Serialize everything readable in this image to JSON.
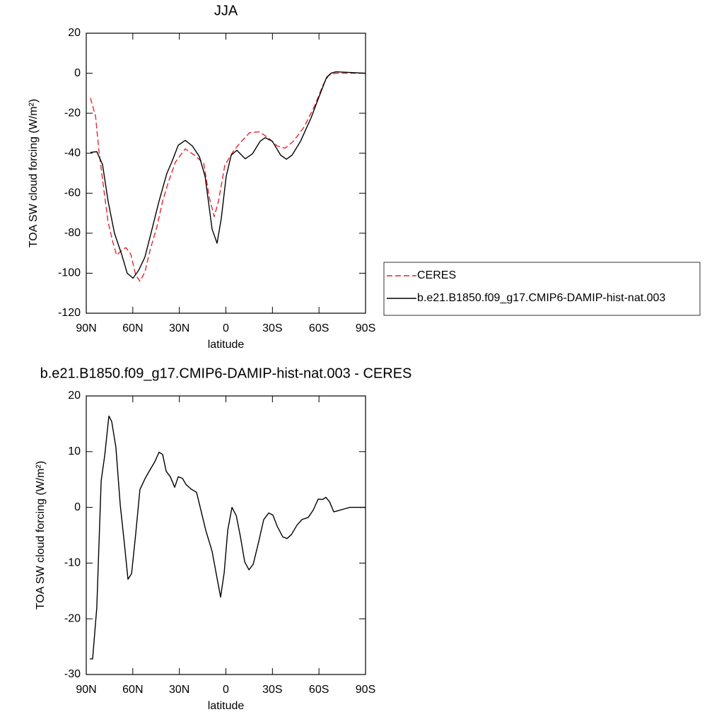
{
  "chart_data": [
    {
      "type": "line",
      "title": "JJA",
      "xlabel": "latitude",
      "ylabel": "TOA SW cloud forcing (W/m²)",
      "xlim": [
        90,
        -90
      ],
      "xticks": [
        {
          "value": 90,
          "label": "90N"
        },
        {
          "value": 60,
          "label": "60N"
        },
        {
          "value": 30,
          "label": "30N"
        },
        0,
        {
          "value": -30,
          "label": "30S"
        },
        {
          "value": -60,
          "label": "60S"
        },
        {
          "value": -90,
          "label": "90S"
        }
      ],
      "ylim": [
        -120,
        20
      ],
      "yticks": [
        -120,
        -100,
        -80,
        -60,
        -40,
        -20,
        0,
        20
      ],
      "legend": "right",
      "series": [
        {
          "name": "CERES",
          "color": "#e8242c",
          "dashed": true,
          "x": [
            87.3,
            84,
            81.8,
            78.6,
            75.9,
            72.7,
            70.4,
            67.2,
            64.5,
            61.3,
            58.1,
            55.4,
            52.2,
            49,
            44.4,
            40.8,
            37.1,
            32.6,
            26.2,
            20.3,
            14.3,
            10.7,
            7.5,
            4.8,
            0.7,
            -4.8,
            -9.4,
            -15.3,
            -21.7,
            -27.6,
            -33.1,
            -38.1,
            -43.5,
            -50.4,
            -57.2,
            -62.7,
            -66.3,
            -70.9,
            -90
          ],
          "values": [
            -12.4,
            -21.6,
            -39,
            -58.6,
            -74.5,
            -85,
            -91,
            -88.6,
            -87.2,
            -90.5,
            -101,
            -104,
            -99.5,
            -88.8,
            -76.5,
            -64,
            -54.5,
            -44.5,
            -37.8,
            -41,
            -45,
            -62,
            -71.7,
            -64,
            -46,
            -39,
            -34.6,
            -29.7,
            -29.3,
            -32.5,
            -36.4,
            -37.5,
            -34,
            -26.9,
            -16.3,
            -5.7,
            -1,
            0,
            0
          ]
        },
        {
          "name": "b.e21.B1850.f09_g17.CMIP6-DAMIP-hist-nat.003",
          "color": "#000000",
          "dashed": false,
          "x": [
            87.3,
            83.2,
            79.5,
            75.9,
            71.8,
            67.2,
            63.6,
            59.9,
            56.3,
            52.2,
            47.6,
            43.1,
            38,
            34.9,
            30.7,
            26.2,
            21.6,
            17.1,
            13.4,
            8.9,
            5.7,
            3,
            -0.2,
            -3.4,
            -7,
            -12.5,
            -17.1,
            -22.1,
            -25.3,
            -29.9,
            -35.3,
            -39,
            -42.6,
            -48.1,
            -54.9,
            -60.4,
            -64.9,
            -67.7,
            -70.9,
            -90
          ],
          "values": [
            -39.6,
            -39.2,
            -45.6,
            -64,
            -80,
            -90.5,
            -100,
            -102.5,
            -98.6,
            -92,
            -78,
            -64,
            -50,
            -44.5,
            -36,
            -33.6,
            -36.4,
            -41.7,
            -51.6,
            -78,
            -85,
            -72.8,
            -51.6,
            -41,
            -38.5,
            -42.8,
            -40.3,
            -34,
            -32.2,
            -34,
            -41,
            -43,
            -41,
            -34,
            -22.3,
            -11,
            -2.1,
            0,
            0.7,
            0
          ]
        }
      ]
    },
    {
      "type": "line",
      "title": "b.e21.B1850.f09_g17.CMIP6-DAMIP-hist-nat.003 - CERES",
      "xlabel": "latitude",
      "ylabel": "TOA SW cloud forcing (W/m²)",
      "xlim": [
        90,
        -90
      ],
      "xticks": [
        {
          "value": 90,
          "label": "90N"
        },
        {
          "value": 60,
          "label": "60N"
        },
        {
          "value": 30,
          "label": "30N"
        },
        0,
        {
          "value": -30,
          "label": "30S"
        },
        {
          "value": -60,
          "label": "60S"
        },
        {
          "value": -90,
          "label": "90S"
        }
      ],
      "ylim": [
        -30,
        20
      ],
      "yticks": [
        -30,
        -20,
        -10,
        0,
        10,
        20
      ],
      "series": [
        {
          "color": "#000000",
          "dashed": false,
          "x": [
            87.7,
            85.9,
            83.2,
            80.4,
            78.1,
            75.4,
            73.6,
            70.9,
            68.1,
            65.4,
            63.1,
            60.8,
            58.1,
            55.4,
            52.2,
            49.4,
            45.8,
            43.1,
            40.8,
            38.5,
            35.8,
            33,
            30.7,
            28,
            25.7,
            22.5,
            18.9,
            13,
            8.9,
            5.7,
            3.4,
            1.1,
            -1.2,
            -3.9,
            -6.7,
            -9.4,
            -12.1,
            -14.9,
            -17.6,
            -20.8,
            -24.4,
            -27.6,
            -30.3,
            -33.1,
            -36.7,
            -39.4,
            -42.2,
            -45.8,
            -49,
            -53.1,
            -56.3,
            -59.5,
            -62.2,
            -64.5,
            -66.8,
            -69.5,
            -72.3,
            -75.9,
            -80,
            -90
          ],
          "values": [
            -27.2,
            -27.2,
            -18,
            4.8,
            9.3,
            16.4,
            15.4,
            10.8,
            0.4,
            -6.6,
            -12.9,
            -11.9,
            -4.7,
            3.2,
            5.1,
            6.5,
            8.2,
            9.9,
            9.5,
            6.5,
            5.5,
            3.6,
            5.5,
            5.2,
            4.1,
            3.3,
            2.7,
            -4.1,
            -7.9,
            -12.7,
            -16.1,
            -11.7,
            -4.1,
            0,
            -1.5,
            -5.3,
            -9.8,
            -11.2,
            -10.2,
            -6.6,
            -2.2,
            -1,
            -1.4,
            -3.4,
            -5.3,
            -5.6,
            -4.9,
            -3.2,
            -2.2,
            -1.8,
            -0.5,
            1.5,
            1.4,
            1.8,
            1,
            -0.8,
            -0.6,
            -0.3,
            0,
            0
          ]
        }
      ]
    }
  ]
}
